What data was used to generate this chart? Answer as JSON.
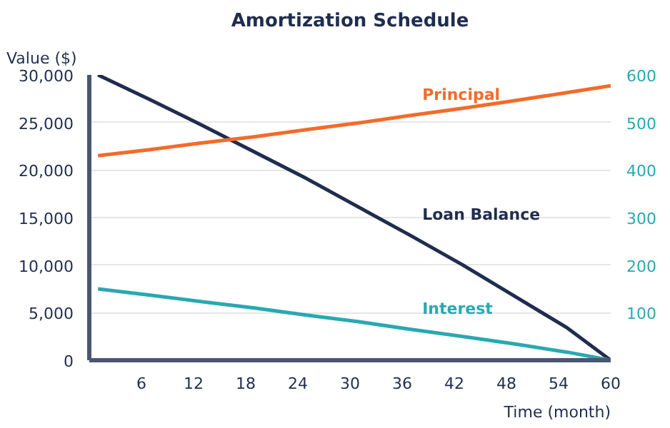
{
  "chart_data": {
    "type": "line",
    "title": "Amortization Schedule",
    "xlabel": "Time (month)",
    "ylabel": "Value ($)",
    "x": [
      1,
      7,
      13,
      19,
      25,
      31,
      37,
      43,
      49,
      55,
      60
    ],
    "series": [
      {
        "name": "Loan Balance",
        "color": "#1f2d4e",
        "values": [
          30000,
          27400,
          24700,
          21900,
          19100,
          16100,
          13100,
          10000,
          6700,
          3400,
          0
        ]
      },
      {
        "name": "Principal",
        "color": "#f26b2b",
        "axis": "y2",
        "values": [
          430,
          443,
          457,
          470,
          485,
          499,
          515,
          530,
          546,
          563,
          577
        ]
      },
      {
        "name": "Interest",
        "color": "#2aa8b0",
        "axis": "y2",
        "values": [
          150,
          137,
          123,
          110,
          95,
          81,
          65,
          50,
          34,
          17,
          0
        ]
      }
    ],
    "xlim": [
      0,
      60
    ],
    "xticks": [
      6,
      12,
      18,
      24,
      30,
      36,
      42,
      48,
      54,
      60
    ],
    "ylim": [
      0,
      30000
    ],
    "yticks": [
      {
        "value": 0,
        "label": "0"
      },
      {
        "value": 5000,
        "label": "5,000"
      },
      {
        "value": 10000,
        "label": "10,000"
      },
      {
        "value": 15000,
        "label": "15,000"
      },
      {
        "value": 20000,
        "label": "20,000"
      },
      {
        "value": 25000,
        "label": "25,000"
      },
      {
        "value": 30000,
        "label": "30,000"
      }
    ],
    "y2lim": [
      0,
      600
    ],
    "y2ticks": [
      100,
      200,
      300,
      400,
      500,
      600
    ],
    "grid": "y",
    "marker": "none",
    "line_style": "solid"
  }
}
